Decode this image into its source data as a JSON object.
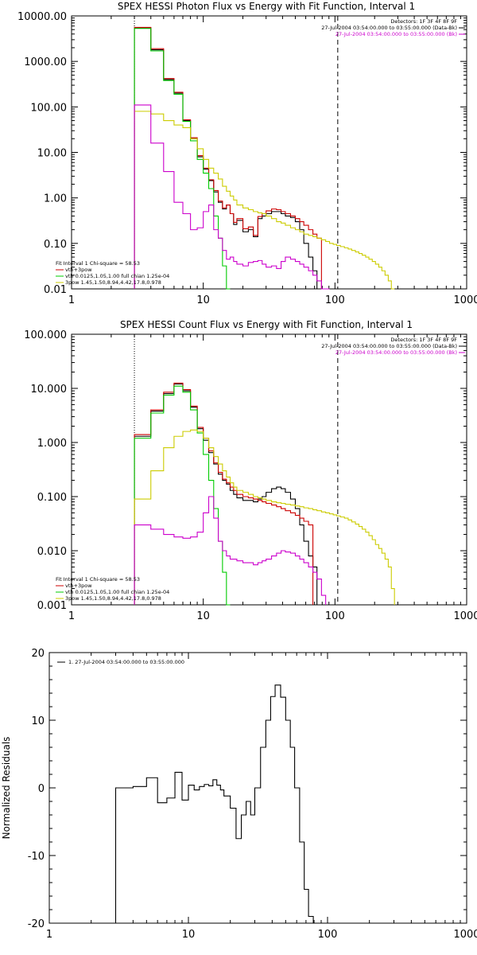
{
  "chart_data": [
    {
      "type": "line",
      "title": "SPEX HESSI Photon Flux vs Energy with Fit Function, Interval 1",
      "x_scale": "log",
      "y_scale": "log",
      "xlim": [
        1,
        1000
      ],
      "ylim": [
        0.01,
        10000
      ],
      "x_ticks": [
        "1",
        "10",
        "100",
        "1000"
      ],
      "y_ticks": [
        "0.01",
        "0.10",
        "1.00",
        "10.00",
        "100.00",
        "1000.00",
        "10000.00"
      ],
      "header_text": [
        "Detectors: 1F 3F 4F 8F 9F",
        "27-Jul-2004 03:54:00.000 to 03:55:00.000 (Data-Bk)",
        "27-Jul-2004 03:54:00.000 to 03:55:00.000 (Bk)"
      ],
      "header_colors": [
        "#000000",
        "#000000",
        "#cc00cc"
      ],
      "legend_text": [
        "Fit Interval 1    Chi-square = 58.53",
        "vth+3pow",
        "vth 0.0125,1.05,1.00   full chian 1.25e-04",
        "3pow 1.45,1.50,8.94,4.42,17.8,0.978"
      ],
      "legend_colors": [
        "#000000",
        "#cc0000",
        "#00cc00",
        "#cccc00"
      ],
      "vertical_lines": [
        {
          "x": 3,
          "style": "dotted"
        },
        {
          "x": 105,
          "style": "dashed"
        }
      ],
      "bin_edges": [
        3,
        4,
        5,
        6,
        7,
        8,
        9,
        10,
        11,
        12,
        13,
        14,
        15,
        16,
        17,
        18,
        20,
        22,
        24,
        26,
        28,
        30,
        33,
        36,
        39,
        42,
        46,
        50,
        54,
        58,
        63,
        68,
        73,
        79,
        85,
        91,
        97,
        103,
        110,
        118,
        126,
        134,
        143,
        152,
        161,
        171,
        181,
        192,
        203,
        215,
        227,
        240,
        254,
        268,
        283
      ],
      "series": [
        {
          "name": "Data-Bk",
          "color": "#000000",
          "values": [
            5500,
            1800,
            400,
            200,
            50,
            20,
            8,
            4.3,
            2.4,
            1.35,
            0.8,
            0.57,
            0.7,
            0.45,
            0.26,
            0.32,
            0.18,
            0.2,
            0.14,
            0.35,
            0.4,
            0.45,
            0.5,
            0.5,
            0.45,
            0.4,
            0.37,
            0.3,
            0.2,
            0.1,
            0.05,
            0.025
          ]
        },
        {
          "name": "vth+3pow",
          "color": "#cc0000",
          "values": [
            5600,
            1900,
            420,
            210,
            52,
            21,
            8.5,
            4.5,
            2.5,
            1.45,
            0.85,
            0.6,
            0.7,
            0.45,
            0.29,
            0.35,
            0.21,
            0.23,
            0.15,
            0.39,
            0.45,
            0.52,
            0.57,
            0.55,
            0.5,
            0.45,
            0.4,
            0.35,
            0.3,
            0.25,
            0.2,
            0.16,
            0.13
          ]
        },
        {
          "name": "vth",
          "color": "#00cc00",
          "values": [
            5300,
            1700,
            380,
            190,
            48,
            18,
            7,
            3.5,
            1.6,
            0.4,
            0.13,
            0.032,
            0.01
          ]
        },
        {
          "name": "3pow",
          "color": "#cccc00",
          "values": [
            80,
            70,
            50,
            40,
            35,
            20,
            12,
            7,
            4.5,
            3.5,
            2.6,
            1.8,
            1.4,
            1.1,
            0.9,
            0.7,
            0.6,
            0.55,
            0.5,
            0.47,
            0.45,
            0.4,
            0.35,
            0.3,
            0.28,
            0.25,
            0.22,
            0.2,
            0.18,
            0.16,
            0.15,
            0.14,
            0.13,
            0.12,
            0.11,
            0.1,
            0.095,
            0.09,
            0.085,
            0.08,
            0.075,
            0.07,
            0.065,
            0.06,
            0.055,
            0.05,
            0.045,
            0.04,
            0.035,
            0.03,
            0.025,
            0.02,
            0.015,
            0.005
          ]
        },
        {
          "name": "Bk",
          "color": "#cc00cc",
          "values": [
            110,
            16,
            3.8,
            0.8,
            0.45,
            0.2,
            0.22,
            0.5,
            0.7,
            0.2,
            0.13,
            0.07,
            0.045,
            0.05,
            0.04,
            0.035,
            0.032,
            0.038,
            0.04,
            0.042,
            0.035,
            0.03,
            0.032,
            0.028,
            0.04,
            0.05,
            0.045,
            0.04,
            0.035,
            0.03,
            0.025,
            0.02,
            0.015,
            0.01,
            0.0095
          ]
        }
      ]
    },
    {
      "type": "line",
      "title": "SPEX HESSI Count Flux vs Energy with Fit Function, Interval 1",
      "x_scale": "log",
      "y_scale": "log",
      "xlim": [
        1,
        1000
      ],
      "ylim": [
        0.001,
        100
      ],
      "x_ticks": [
        "1",
        "10",
        "100",
        "1000"
      ],
      "y_ticks": [
        "0.001",
        "0.010",
        "0.100",
        "1.000",
        "10.000",
        "100.000"
      ],
      "header_text": [
        "Detectors: 1F 3F 4F 8F 9F",
        "27-Jul-2004 03:54:00.000 to 03:55:00.000 (Data-Bk)",
        "27-Jul-2004 03:54:00.000 to 03:55:00.000 (Bk)"
      ],
      "header_colors": [
        "#000000",
        "#000000",
        "#cc00cc"
      ],
      "legend_text": [
        "Fit Interval 1    Chi-square = 58.53",
        "vth+3pow",
        "vth 0.0125,1.05,1.00   full chian 1.25e-04",
        "3pow 1.45,1.50,8.94,4.42,17.8,0.978"
      ],
      "legend_colors": [
        "#000000",
        "#cc0000",
        "#00cc00",
        "#cccc00"
      ],
      "vertical_lines": [
        {
          "x": 3,
          "style": "dotted"
        },
        {
          "x": 105,
          "style": "dashed"
        }
      ],
      "bin_edges": [
        3,
        4,
        5,
        6,
        7,
        8,
        9,
        10,
        11,
        12,
        13,
        14,
        15,
        16,
        17,
        18,
        20,
        22,
        24,
        26,
        28,
        30,
        33,
        36,
        39,
        42,
        46,
        50,
        54,
        58,
        63,
        68,
        73,
        79,
        85,
        91,
        97,
        103,
        110,
        118,
        126,
        134,
        143,
        152,
        161,
        171,
        181,
        192,
        203,
        215,
        227,
        240,
        254,
        268,
        283
      ],
      "series": [
        {
          "name": "Data-Bk",
          "color": "#000000",
          "values": [
            1.3,
            3.8,
            8,
            12,
            9,
            4.5,
            1.8,
            1.1,
            0.65,
            0.4,
            0.26,
            0.2,
            0.17,
            0.13,
            0.11,
            0.095,
            0.085,
            0.085,
            0.08,
            0.09,
            0.1,
            0.12,
            0.14,
            0.15,
            0.14,
            0.12,
            0.09,
            0.06,
            0.03,
            0.015,
            0.008,
            0.005
          ]
        },
        {
          "name": "vth+3pow",
          "color": "#cc0000",
          "values": [
            1.4,
            4,
            8.5,
            12.5,
            9.5,
            4.7,
            1.9,
            1.2,
            0.7,
            0.42,
            0.28,
            0.21,
            0.18,
            0.15,
            0.13,
            0.11,
            0.1,
            0.095,
            0.09,
            0.085,
            0.08,
            0.075,
            0.07,
            0.065,
            0.06,
            0.055,
            0.05,
            0.045,
            0.04,
            0.035,
            0.03
          ]
        },
        {
          "name": "vth",
          "color": "#00cc00",
          "values": [
            1.2,
            3.5,
            7.5,
            11,
            8.5,
            4,
            1.5,
            0.6,
            0.2,
            0.06,
            0.015,
            0.004,
            0.001
          ]
        },
        {
          "name": "3pow",
          "color": "#cccc00",
          "values": [
            0.09,
            0.3,
            0.8,
            1.3,
            1.6,
            1.7,
            1.6,
            1.2,
            0.8,
            0.55,
            0.4,
            0.3,
            0.23,
            0.18,
            0.15,
            0.13,
            0.12,
            0.11,
            0.1,
            0.095,
            0.09,
            0.085,
            0.08,
            0.077,
            0.075,
            0.072,
            0.07,
            0.067,
            0.065,
            0.062,
            0.06,
            0.057,
            0.055,
            0.052,
            0.05,
            0.048,
            0.046,
            0.044,
            0.042,
            0.04,
            0.037,
            0.034,
            0.031,
            0.028,
            0.025,
            0.022,
            0.019,
            0.016,
            0.013,
            0.011,
            0.009,
            0.007,
            0.005,
            0.002
          ]
        },
        {
          "name": "Bk",
          "color": "#cc00cc",
          "values": [
            0.03,
            0.025,
            0.02,
            0.018,
            0.017,
            0.018,
            0.022,
            0.05,
            0.1,
            0.04,
            0.015,
            0.01,
            0.008,
            0.007,
            0.007,
            0.0065,
            0.006,
            0.006,
            0.0055,
            0.006,
            0.0065,
            0.007,
            0.008,
            0.009,
            0.01,
            0.0095,
            0.009,
            0.008,
            0.007,
            0.006,
            0.005,
            0.004,
            0.003,
            0.0015
          ]
        }
      ]
    },
    {
      "type": "line",
      "title": "",
      "ylabel": "Normalized Residuals",
      "x_scale": "log",
      "y_scale": "linear",
      "xlim": [
        1,
        1000
      ],
      "ylim": [
        -20,
        20
      ],
      "x_ticks": [
        "1",
        "10",
        "100",
        "1000"
      ],
      "y_ticks": [
        "-20",
        "-10",
        "0",
        "10",
        "20"
      ],
      "legend_text": [
        "1. 27-Jul-2004 03:54:00.000 to 03:55:00.000"
      ],
      "legend_colors": [
        "#000000"
      ],
      "bin_edges": [
        3,
        4,
        5,
        6,
        7,
        8,
        9,
        10,
        11,
        12,
        13,
        14,
        15,
        16,
        17,
        18,
        20,
        22,
        24,
        26,
        28,
        30,
        33,
        36,
        39,
        42,
        46,
        50,
        54,
        58,
        63,
        68,
        73,
        79,
        85,
        91,
        97,
        103,
        110
      ],
      "series": [
        {
          "name": "1. 27-Jul-2004 03:54:00.000 to 03:55:00.000",
          "color": "#000000",
          "values": [
            0,
            0.2,
            1.5,
            -2.2,
            -1.5,
            2.3,
            -1.8,
            0.4,
            -0.3,
            0.2,
            0.5,
            0.3,
            1.2,
            0.4,
            -0.3,
            -1.2,
            -3,
            -7.5,
            -4,
            -2,
            -4,
            0,
            6,
            10,
            13.5,
            15.2,
            13.4,
            10,
            6,
            0,
            -8,
            -15,
            -19,
            -20
          ]
        }
      ]
    }
  ]
}
